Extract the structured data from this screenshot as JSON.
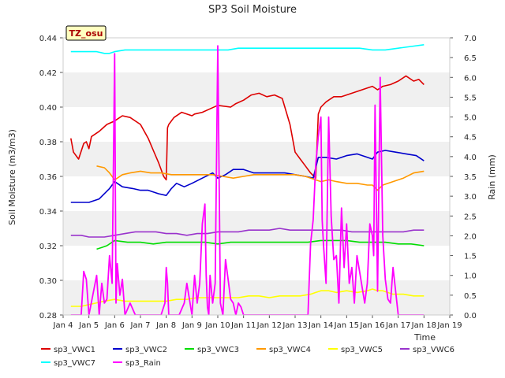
{
  "chart_data": {
    "type": "line",
    "title": "SP3 Soil Moisture",
    "badge": "TZ_osu",
    "xlabel": "Time",
    "ylabel": "Soil Moisture (m3/m3)",
    "y2label": "Rain (mm)",
    "xlim": [
      0,
      15
    ],
    "ylim": [
      0.28,
      0.44
    ],
    "y2lim": [
      0.0,
      7.0
    ],
    "x_ticks": [
      {
        "x": 0,
        "label": "Jan 4"
      },
      {
        "x": 1,
        "label": "Jan 5"
      },
      {
        "x": 2,
        "label": "Jan 6"
      },
      {
        "x": 3,
        "label": "Jan 7"
      },
      {
        "x": 4,
        "label": "Jan 8"
      },
      {
        "x": 5,
        "label": "Jan 9"
      },
      {
        "x": 6,
        "label": "Jan 10"
      },
      {
        "x": 7,
        "label": "Jan 11"
      },
      {
        "x": 8,
        "label": "Jan 12"
      },
      {
        "x": 9,
        "label": "Jan 13"
      },
      {
        "x": 10,
        "label": "Jan 14"
      },
      {
        "x": 11,
        "label": "Jan 15"
      },
      {
        "x": 12,
        "label": "Jan 16"
      },
      {
        "x": 13,
        "label": "Jan 17"
      },
      {
        "x": 14,
        "label": "Jan 18"
      },
      {
        "x": 15,
        "label": "Jan 19"
      }
    ],
    "y_ticks": [
      "0.28",
      "0.30",
      "0.32",
      "0.34",
      "0.36",
      "0.38",
      "0.40",
      "0.42",
      "0.44"
    ],
    "y2_ticks": [
      "0.0",
      "0.5",
      "1.0",
      "1.5",
      "2.0",
      "2.5",
      "3.0",
      "3.5",
      "4.0",
      "4.5",
      "5.0",
      "5.5",
      "6.0",
      "6.5",
      "7.0"
    ],
    "grid": "horizontal bands",
    "legend_position": "bottom",
    "series": [
      {
        "name": "sp3_VWC1",
        "color": "#dd0000",
        "axis": "left",
        "x": [
          0.3,
          0.4,
          0.6,
          0.8,
          0.9,
          1.0,
          1.1,
          1.4,
          1.7,
          2.0,
          2.3,
          2.6,
          3.0,
          3.3,
          3.5,
          3.7,
          3.9,
          4.0,
          4.05,
          4.1,
          4.3,
          4.6,
          5.0,
          5.1,
          5.4,
          5.7,
          6.0,
          6.5,
          6.7,
          7.0,
          7.3,
          7.6,
          7.9,
          8.2,
          8.5,
          8.8,
          9.0,
          9.2,
          9.4,
          9.6,
          9.8,
          9.9,
          10.0,
          10.2,
          10.5,
          10.8,
          11.2,
          11.6,
          11.8,
          12.0,
          12.2,
          12.4,
          12.7,
          13.0,
          13.3,
          13.6,
          13.8,
          14.0
        ],
        "values": [
          0.382,
          0.374,
          0.37,
          0.379,
          0.38,
          0.376,
          0.383,
          0.386,
          0.39,
          0.392,
          0.395,
          0.394,
          0.39,
          0.382,
          0.375,
          0.368,
          0.36,
          0.358,
          0.388,
          0.39,
          0.394,
          0.397,
          0.395,
          0.396,
          0.397,
          0.399,
          0.401,
          0.4,
          0.402,
          0.404,
          0.407,
          0.408,
          0.406,
          0.407,
          0.405,
          0.39,
          0.374,
          0.37,
          0.366,
          0.362,
          0.359,
          0.396,
          0.4,
          0.403,
          0.406,
          0.406,
          0.408,
          0.41,
          0.411,
          0.412,
          0.41,
          0.412,
          0.413,
          0.415,
          0.418,
          0.415,
          0.416,
          0.413
        ]
      },
      {
        "name": "sp3_VWC2",
        "color": "#0000cc",
        "axis": "left",
        "x": [
          0.3,
          1.0,
          1.4,
          1.8,
          2.0,
          2.3,
          2.7,
          3.0,
          3.3,
          3.7,
          4.0,
          4.2,
          4.4,
          4.7,
          5.0,
          5.4,
          5.8,
          6.0,
          6.3,
          6.6,
          7.0,
          7.4,
          7.8,
          8.2,
          8.6,
          9.0,
          9.4,
          9.7,
          9.9,
          10.2,
          10.6,
          11.0,
          11.4,
          11.8,
          12.0,
          12.2,
          12.5,
          12.9,
          13.3,
          13.7,
          14.0
        ],
        "values": [
          0.345,
          0.345,
          0.347,
          0.353,
          0.357,
          0.354,
          0.353,
          0.352,
          0.352,
          0.35,
          0.349,
          0.353,
          0.356,
          0.354,
          0.356,
          0.359,
          0.362,
          0.359,
          0.361,
          0.364,
          0.364,
          0.362,
          0.362,
          0.362,
          0.362,
          0.361,
          0.36,
          0.359,
          0.371,
          0.371,
          0.37,
          0.372,
          0.373,
          0.371,
          0.37,
          0.374,
          0.375,
          0.374,
          0.373,
          0.372,
          0.369
        ]
      },
      {
        "name": "sp3_VWC3",
        "color": "#00dd00",
        "axis": "left",
        "x": [
          1.3,
          1.5,
          1.7,
          2.0,
          2.5,
          3.0,
          3.5,
          4.0,
          4.5,
          5.0,
          5.5,
          6.0,
          6.5,
          7.0,
          7.5,
          8.0,
          8.5,
          9.0,
          9.5,
          10.0,
          10.5,
          11.0,
          11.5,
          12.0,
          12.5,
          13.0,
          13.5,
          14.0
        ],
        "values": [
          0.318,
          0.319,
          0.32,
          0.323,
          0.322,
          0.322,
          0.321,
          0.322,
          0.322,
          0.322,
          0.322,
          0.321,
          0.322,
          0.322,
          0.322,
          0.322,
          0.322,
          0.322,
          0.322,
          0.323,
          0.323,
          0.323,
          0.322,
          0.322,
          0.322,
          0.321,
          0.321,
          0.32
        ]
      },
      {
        "name": "sp3_VWC4",
        "color": "#ff9900",
        "axis": "left",
        "x": [
          1.3,
          1.6,
          1.8,
          2.0,
          2.3,
          2.6,
          3.0,
          3.4,
          3.8,
          4.2,
          4.6,
          5.0,
          5.4,
          5.8,
          6.2,
          6.6,
          7.0,
          7.4,
          7.8,
          8.2,
          8.6,
          9.0,
          9.4,
          9.8,
          10.0,
          10.3,
          10.6,
          11.0,
          11.4,
          11.8,
          12.0,
          12.2,
          12.4,
          12.8,
          13.2,
          13.6,
          14.0
        ],
        "values": [
          0.366,
          0.365,
          0.362,
          0.358,
          0.361,
          0.362,
          0.363,
          0.362,
          0.362,
          0.361,
          0.361,
          0.361,
          0.361,
          0.361,
          0.36,
          0.359,
          0.36,
          0.361,
          0.361,
          0.361,
          0.361,
          0.361,
          0.36,
          0.358,
          0.357,
          0.358,
          0.357,
          0.356,
          0.356,
          0.355,
          0.355,
          0.352,
          0.355,
          0.357,
          0.359,
          0.362,
          0.363
        ]
      },
      {
        "name": "sp3_VWC5",
        "color": "#ffff00",
        "axis": "left",
        "x": [
          0.3,
          0.7,
          1.0,
          1.3,
          1.6,
          2.0,
          2.4,
          2.8,
          3.2,
          3.6,
          4.0,
          4.4,
          4.8,
          5.2,
          5.6,
          6.0,
          6.4,
          6.8,
          7.2,
          7.6,
          8.0,
          8.4,
          8.8,
          9.2,
          9.6,
          9.8,
          10.0,
          10.3,
          10.6,
          11.0,
          11.4,
          11.8,
          12.0,
          12.2,
          12.4,
          12.8,
          13.2,
          13.6,
          14.0
        ],
        "values": [
          0.285,
          0.285,
          0.286,
          0.287,
          0.288,
          0.289,
          0.288,
          0.288,
          0.288,
          0.288,
          0.288,
          0.289,
          0.289,
          0.29,
          0.29,
          0.29,
          0.29,
          0.29,
          0.291,
          0.291,
          0.29,
          0.291,
          0.291,
          0.291,
          0.292,
          0.293,
          0.294,
          0.294,
          0.293,
          0.294,
          0.293,
          0.294,
          0.295,
          0.294,
          0.294,
          0.292,
          0.292,
          0.291,
          0.291
        ]
      },
      {
        "name": "sp3_VWC6",
        "color": "#9933cc",
        "axis": "left",
        "x": [
          0.3,
          0.7,
          1.0,
          1.3,
          1.6,
          2.0,
          2.4,
          2.8,
          3.2,
          3.6,
          4.0,
          4.4,
          4.8,
          5.2,
          5.6,
          6.0,
          6.4,
          6.8,
          7.2,
          7.6,
          8.0,
          8.4,
          8.8,
          9.2,
          9.6,
          10.0,
          10.4,
          10.8,
          11.2,
          11.6,
          12.0,
          12.4,
          12.8,
          13.2,
          13.6,
          14.0
        ],
        "values": [
          0.326,
          0.326,
          0.325,
          0.325,
          0.325,
          0.326,
          0.327,
          0.328,
          0.328,
          0.328,
          0.327,
          0.327,
          0.326,
          0.327,
          0.327,
          0.328,
          0.328,
          0.328,
          0.329,
          0.329,
          0.329,
          0.33,
          0.329,
          0.329,
          0.329,
          0.329,
          0.329,
          0.329,
          0.328,
          0.328,
          0.328,
          0.328,
          0.328,
          0.328,
          0.329,
          0.329
        ]
      },
      {
        "name": "sp3_VWC7",
        "color": "#00ffff",
        "axis": "left",
        "x": [
          0.3,
          0.8,
          1.3,
          1.6,
          1.8,
          2.0,
          2.4,
          2.8,
          3.2,
          3.6,
          4.0,
          4.4,
          4.8,
          5.2,
          5.6,
          6.0,
          6.4,
          6.8,
          7.2,
          7.6,
          8.0,
          8.5,
          9.0,
          9.5,
          10.0,
          10.5,
          11.0,
          11.5,
          12.0,
          12.5,
          13.0,
          13.5,
          14.0
        ],
        "values": [
          0.432,
          0.432,
          0.432,
          0.431,
          0.431,
          0.432,
          0.433,
          0.433,
          0.433,
          0.433,
          0.433,
          0.433,
          0.433,
          0.433,
          0.433,
          0.433,
          0.433,
          0.434,
          0.434,
          0.434,
          0.434,
          0.434,
          0.434,
          0.434,
          0.434,
          0.434,
          0.434,
          0.434,
          0.433,
          0.433,
          0.434,
          0.435,
          0.436
        ]
      },
      {
        "name": "sp3_Rain",
        "color": "#ff00ff",
        "axis": "right",
        "x": [
          0.3,
          0.7,
          0.8,
          0.9,
          1.0,
          1.3,
          1.4,
          1.5,
          1.6,
          1.7,
          1.8,
          1.9,
          2.0,
          2.05,
          2.1,
          2.2,
          2.3,
          2.4,
          2.6,
          2.8,
          3.0,
          3.4,
          3.8,
          3.95,
          4.0,
          4.05,
          4.1,
          4.3,
          4.5,
          4.7,
          4.8,
          5.0,
          5.1,
          5.2,
          5.3,
          5.4,
          5.5,
          5.55,
          5.6,
          5.65,
          5.7,
          5.8,
          5.9,
          6.0,
          6.1,
          6.2,
          6.3,
          6.4,
          6.5,
          6.6,
          6.7,
          6.8,
          6.9,
          7.0,
          7.5,
          8.0,
          8.5,
          9.0,
          9.5,
          9.6,
          9.7,
          9.8,
          9.9,
          10.0,
          10.05,
          10.1,
          10.2,
          10.3,
          10.4,
          10.5,
          10.6,
          10.7,
          10.8,
          10.9,
          11.0,
          11.1,
          11.2,
          11.3,
          11.4,
          11.5,
          11.7,
          11.8,
          11.9,
          12.0,
          12.05,
          12.1,
          12.2,
          12.3,
          12.4,
          12.5,
          12.6,
          12.7,
          12.8,
          13.0,
          13.5,
          14.0
        ],
        "values": [
          0,
          0,
          1.1,
          0.9,
          0,
          1.0,
          0,
          0.8,
          0.3,
          0.4,
          1.5,
          0.8,
          6.6,
          0.3,
          1.3,
          0.5,
          0.9,
          0,
          0.3,
          0,
          0,
          0,
          0,
          0.3,
          1.2,
          0.8,
          0,
          0,
          0,
          0.3,
          0.8,
          0,
          1.0,
          0.3,
          0.8,
          2.3,
          2.8,
          1.0,
          0.2,
          0,
          1.0,
          0.3,
          0.8,
          6.8,
          0.3,
          0,
          1.4,
          0.9,
          0.4,
          0.3,
          0,
          0.3,
          0.2,
          0,
          0,
          0,
          0,
          0,
          0,
          1.8,
          2.4,
          3.8,
          4.5,
          5.0,
          2.4,
          1.8,
          0.8,
          5.0,
          2.5,
          1.4,
          1.5,
          0.3,
          2.7,
          1.2,
          2.3,
          0.8,
          1.2,
          0.3,
          1.5,
          1.1,
          0.3,
          0.8,
          2.3,
          2.0,
          1.5,
          5.3,
          0.6,
          6.0,
          2.0,
          0.9,
          0.4,
          0.3,
          1.2,
          0,
          0,
          0
        ]
      }
    ]
  }
}
